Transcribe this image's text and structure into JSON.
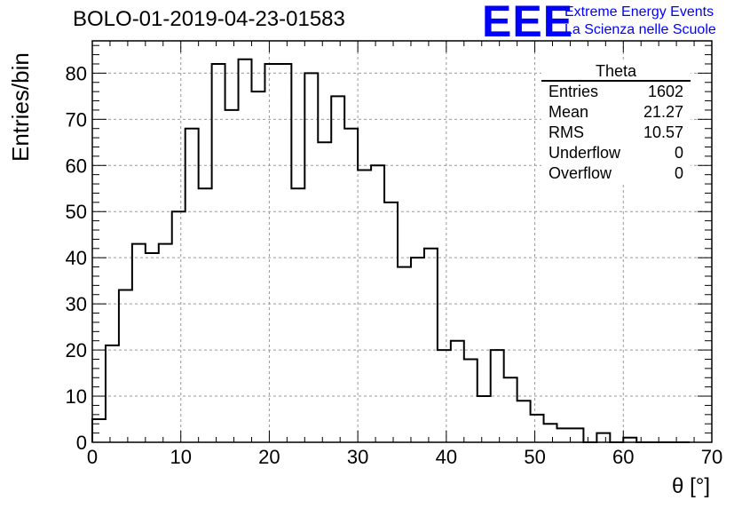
{
  "header": {
    "run_title": "BOLO-01-2019-04-23-01583",
    "logo_text": "EEE",
    "logo_line1": "Extreme Energy Events",
    "logo_line2": "La Scienza nelle Scuole",
    "logo_color": "#0000ff"
  },
  "stats": {
    "title": "Theta",
    "rows": [
      {
        "label": "Entries",
        "value": "1602"
      },
      {
        "label": "Mean",
        "value": "21.27"
      },
      {
        "label": "RMS",
        "value": "10.57"
      },
      {
        "label": "Underflow",
        "value": "0"
      },
      {
        "label": "Overflow",
        "value": "0"
      }
    ]
  },
  "chart_data": {
    "type": "bar",
    "style": "step histogram",
    "xlabel": "θ [°]",
    "ylabel": "Entries/bin",
    "xlim": [
      0,
      70
    ],
    "ylim": [
      0,
      87
    ],
    "xticks": [
      0,
      10,
      20,
      30,
      40,
      50,
      60,
      70
    ],
    "yticks": [
      0,
      10,
      20,
      30,
      40,
      50,
      60,
      70,
      80
    ],
    "grid": true,
    "bin_edges": [
      0,
      1.5,
      3,
      4.5,
      6,
      7.5,
      9,
      10.5,
      12,
      13.5,
      15,
      16.5,
      18,
      19.5,
      21,
      22.5,
      24,
      25.5,
      27,
      28.5,
      30,
      31.5,
      33,
      34.5,
      36,
      37.5,
      39,
      40.5,
      42,
      43.5,
      45,
      46.5,
      48,
      49.5,
      51,
      52.5,
      54,
      55.5,
      57,
      58.5,
      60,
      61.5,
      63,
      64.5,
      66,
      67.5
    ],
    "values": [
      5,
      21,
      33,
      43,
      41,
      43,
      50,
      68,
      55,
      82,
      72,
      83,
      76,
      82,
      82,
      55,
      80,
      65,
      75,
      68,
      59,
      60,
      52,
      38,
      40,
      42,
      20,
      22,
      18,
      10,
      20,
      14,
      9,
      6,
      4,
      3,
      3,
      0,
      2,
      0,
      1,
      0,
      0,
      0,
      0
    ]
  }
}
